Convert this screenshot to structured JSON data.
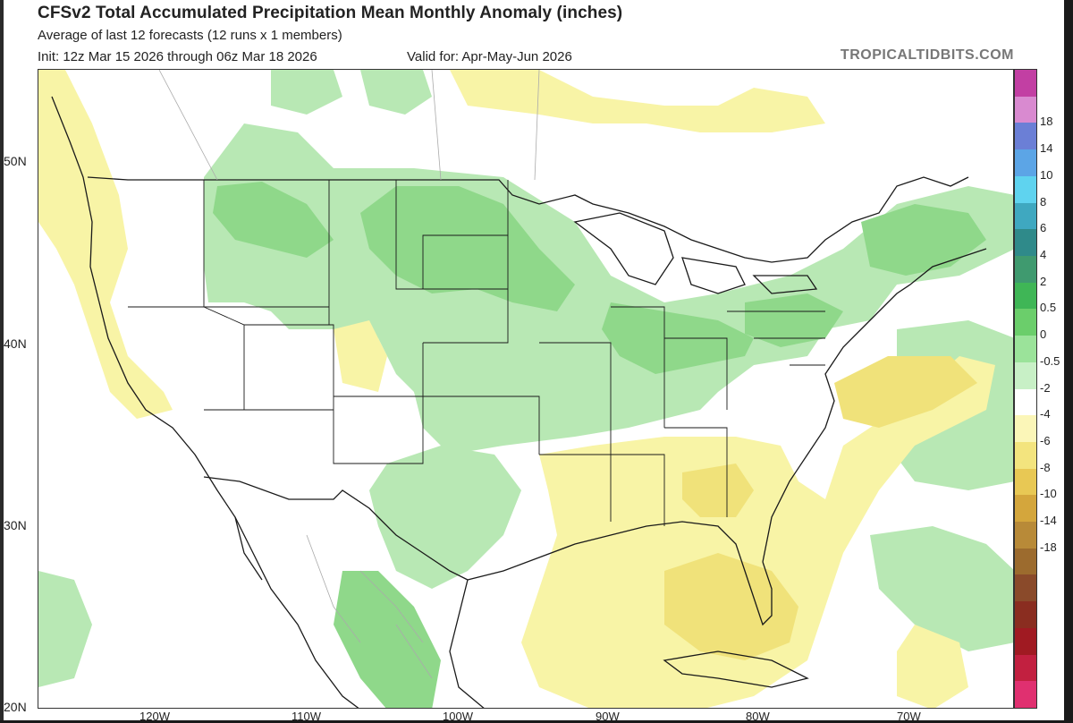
{
  "header": {
    "title": "CFSv2 Total Accumulated Precipitation Mean Monthly Anomaly (inches)",
    "subtitle": "Average of last 12 forecasts (12 runs x 1 members)",
    "init": "Init: 12z Mar 15 2026 through 06z Mar 18 2026",
    "valid": "Valid for: Apr-May-Jun 2026",
    "brand": "TROPICALTIDBITS.COM"
  },
  "map": {
    "region": "Contiguous United States, southern Canada, Mexico, Gulf of Mexico, western Atlantic",
    "lat_labels": [
      "50N",
      "40N",
      "30N",
      "20N"
    ],
    "lon_labels": [
      "120W",
      "110W",
      "100W",
      "90W",
      "80W",
      "70W"
    ],
    "colors": {
      "light_green": "#b8e8b4",
      "green": "#8fd88a",
      "mid_green": "#73cc6e",
      "light_yellow": "#f8f4a6",
      "yellow": "#f0e27a",
      "gold": "#e6c94e",
      "land_line": "#1a1a1a",
      "country_line": "#999999"
    }
  },
  "colorbar": {
    "labels": [
      "18",
      "14",
      "10",
      "8",
      "6",
      "4",
      "2",
      "0.5",
      "0",
      "-0.5",
      "-2",
      "-4",
      "-6",
      "-8",
      "-10",
      "-14",
      "-18"
    ],
    "colors": [
      "#c23fa3",
      "#d98ad0",
      "#6b7fd6",
      "#5ca5e6",
      "#5fd3ef",
      "#3fa8c0",
      "#2f8a8a",
      "#3f9a6f",
      "#3fb656",
      "#6bce6b",
      "#9be39a",
      "#c8f0c6",
      "#ffffff",
      "#fbf6b8",
      "#f3e47e",
      "#e8c854",
      "#d4a63c",
      "#b88a38",
      "#9c6b2e",
      "#8a4a2a",
      "#8a2d20",
      "#a01a22",
      "#c22040",
      "#e03070"
    ]
  }
}
